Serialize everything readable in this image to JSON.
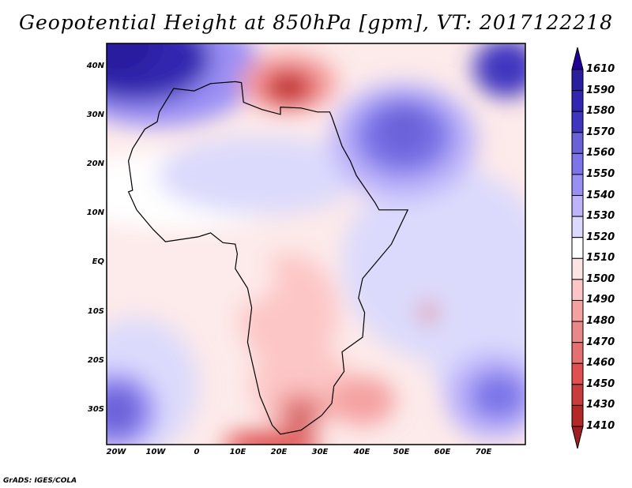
{
  "title": "Geopotential Height at 850hPa [gpm], VT: 2017122218",
  "lat_labels": [
    "40N",
    "30N",
    "20N",
    "10N",
    "EQ",
    "10S",
    "20S",
    "30S"
  ],
  "lon_labels": [
    "20W",
    "10W",
    "0",
    "10E",
    "20E",
    "30E",
    "40E",
    "50E",
    "60E",
    "70E"
  ],
  "colorbar": {
    "labels": [
      "1610",
      "1590",
      "1580",
      "1570",
      "1560",
      "1550",
      "1540",
      "1530",
      "1520",
      "1510",
      "1500",
      "1490",
      "1480",
      "1470",
      "1460",
      "1450",
      "1430",
      "1410"
    ],
    "top_arrow_color": "#1e0096",
    "bottom_arrow_color": "#a01e1e",
    "colors": [
      "#2a1f9e",
      "#3226b0",
      "#3f35c0",
      "#6a60d8",
      "#7c74e8",
      "#9a8ff5",
      "#bdb4fa",
      "#dcdafc",
      "#ffffff",
      "#fde4e4",
      "#fdc6c6",
      "#f5a1a1",
      "#e88888",
      "#e57070",
      "#e05050",
      "#c83c3c",
      "#b52828"
    ]
  },
  "credit": "GrADS: IGES/COLA"
}
